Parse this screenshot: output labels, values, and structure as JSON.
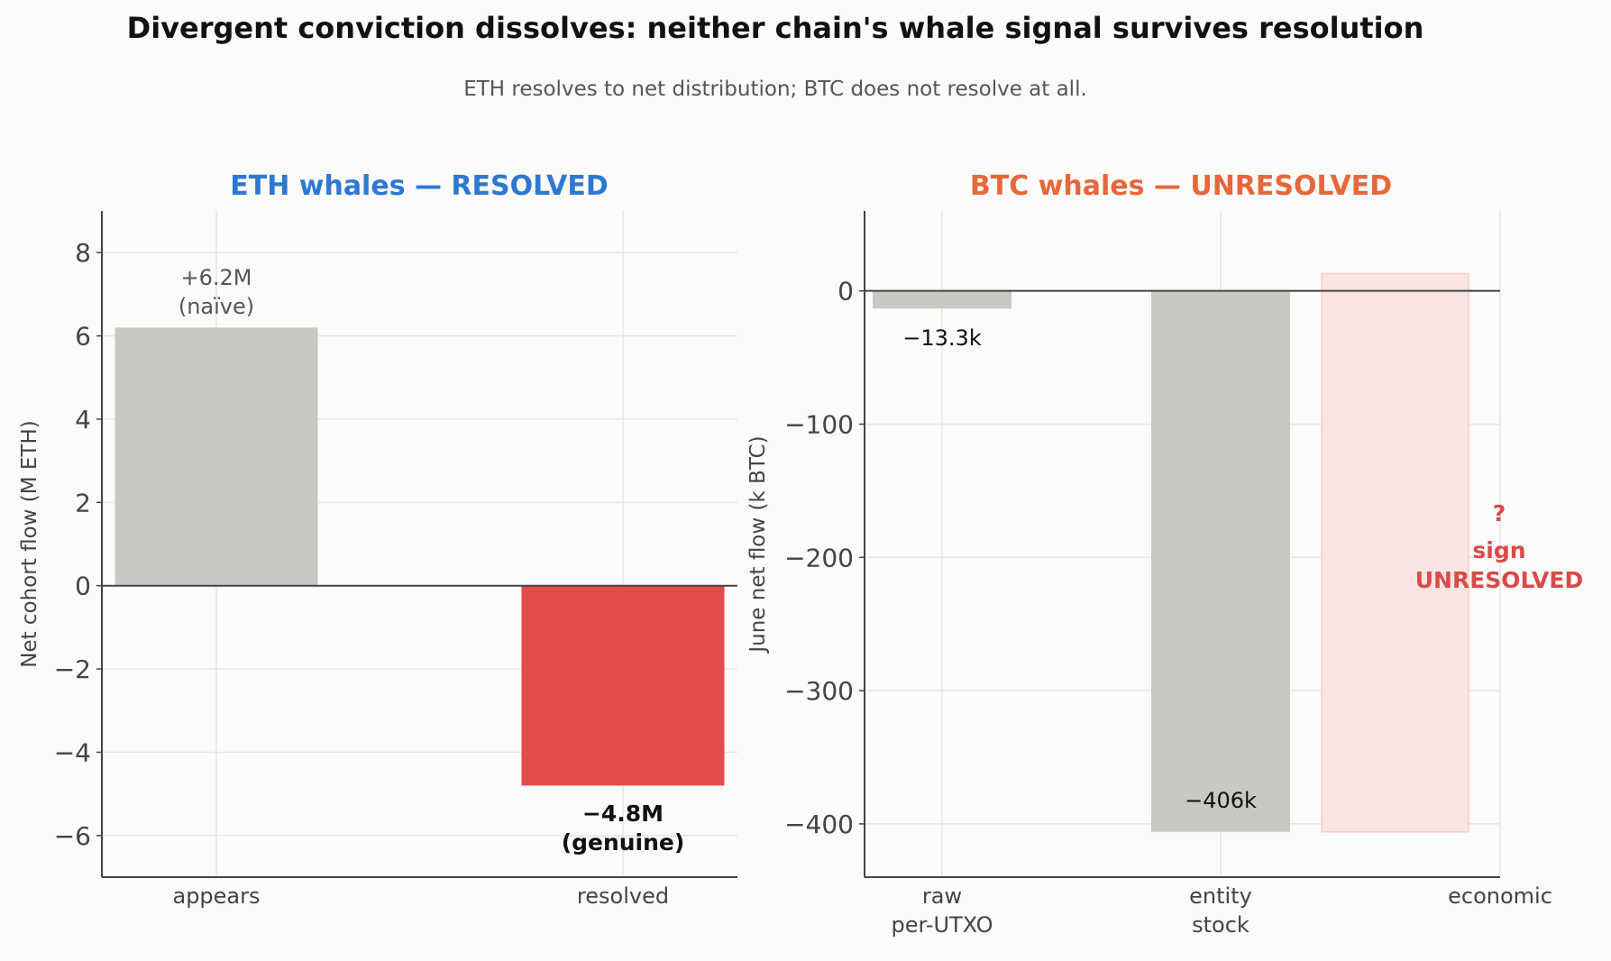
{
  "title": "Divergent conviction dissolves: neither chain's whale signal survives resolution",
  "subtitle": "ETH resolves to net distribution; BTC does not resolve at all.",
  "colors": {
    "eth_title": "#2e78d2",
    "btc_title": "#e8673a",
    "bar_gray": "#c9c8c3",
    "bar_red": "#e24a4b",
    "unresolved_fill": "#f8e4e2",
    "unresolved_text": "#d94a48",
    "grid": "#e6e6e6",
    "axis": "#444444",
    "tick_text": "#444444"
  },
  "chart_data": [
    {
      "type": "bar",
      "panel_title": "ETH whales — RESOLVED",
      "ylabel": "Net cohort flow (M ETH)",
      "xlabel": "",
      "ylim": [
        -7,
        9
      ],
      "yticks": [
        -6,
        -4,
        -2,
        0,
        2,
        4,
        6,
        8
      ],
      "ytick_labels": [
        "−6",
        "−4",
        "−2",
        "0",
        "2",
        "4",
        "6",
        "8"
      ],
      "categories": [
        "appears",
        "resolved"
      ],
      "values": [
        6.2,
        -4.8
      ],
      "bar_colors": [
        "gray",
        "red"
      ],
      "data_labels": [
        {
          "lines": [
            "+6.2M",
            "(naïve)"
          ],
          "bold": false
        },
        {
          "lines": [
            "−4.8M",
            "(genuine)"
          ],
          "bold": true
        }
      ],
      "grid": true
    },
    {
      "type": "bar",
      "panel_title": "BTC whales — UNRESOLVED",
      "ylabel": "June net flow (k BTC)",
      "xlabel": "",
      "ylim": [
        -440,
        60
      ],
      "yticks": [
        -400,
        -300,
        -200,
        -100,
        0
      ],
      "ytick_labels": [
        "−400",
        "−300",
        "−200",
        "−100",
        "0"
      ],
      "categories": [
        [
          "raw",
          "per-UTXO"
        ],
        [
          "entity",
          "stock"
        ],
        [
          "economic"
        ]
      ],
      "values": [
        -13.3,
        -406,
        null
      ],
      "data_labels": [
        "−13.3k",
        "−406k",
        ""
      ],
      "unresolved_band": {
        "from": -406,
        "to": 13
      },
      "annotation": [
        "?",
        "sign",
        "UNRESOLVED"
      ],
      "grid": true
    }
  ]
}
